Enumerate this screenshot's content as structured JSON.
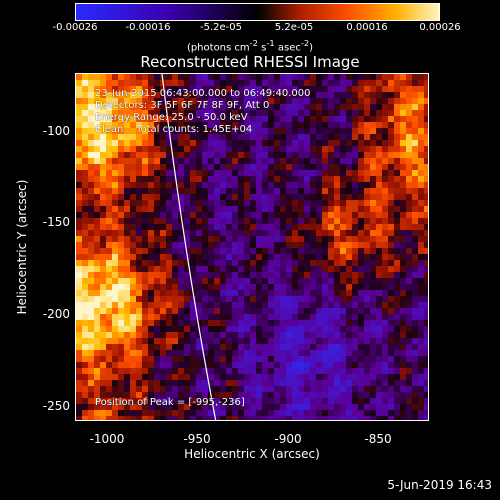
{
  "colorbar": {
    "ticks": [
      "-0.00026",
      "-0.00016",
      "-5.2e-05",
      "5.2e-05",
      "0.00016",
      "0.00026"
    ],
    "units_prefix": "(photons cm",
    "units_exp1": "-2",
    "units_mid": " s",
    "units_exp2": "-1",
    "units_suffix": " asec",
    "units_exp3": "-2",
    "units_close": ")"
  },
  "title": "Reconstructed RHESSI Image",
  "annotations": {
    "time": "23-Jun-2015 06:43:00.000 to 06:49:40.000",
    "detectors": "Detectors: 3F 5F 6F 7F 8F 9F, Att 0",
    "energy": "Energy Range: 25.0 - 50.0 keV",
    "clean": "Clean    Total counts: 1.45E+04",
    "peak": "Position of Peak = [-995,-236]"
  },
  "axes": {
    "xlabel": "Heliocentric X (arcsec)",
    "ylabel": "Heliocentric Y (arcsec)",
    "xticks": [
      "-1000",
      "-950",
      "-900",
      "-850"
    ],
    "yticks": [
      "-100",
      "-150",
      "-200",
      "-250"
    ]
  },
  "footer": "5-Jun-2019 16:43"
}
